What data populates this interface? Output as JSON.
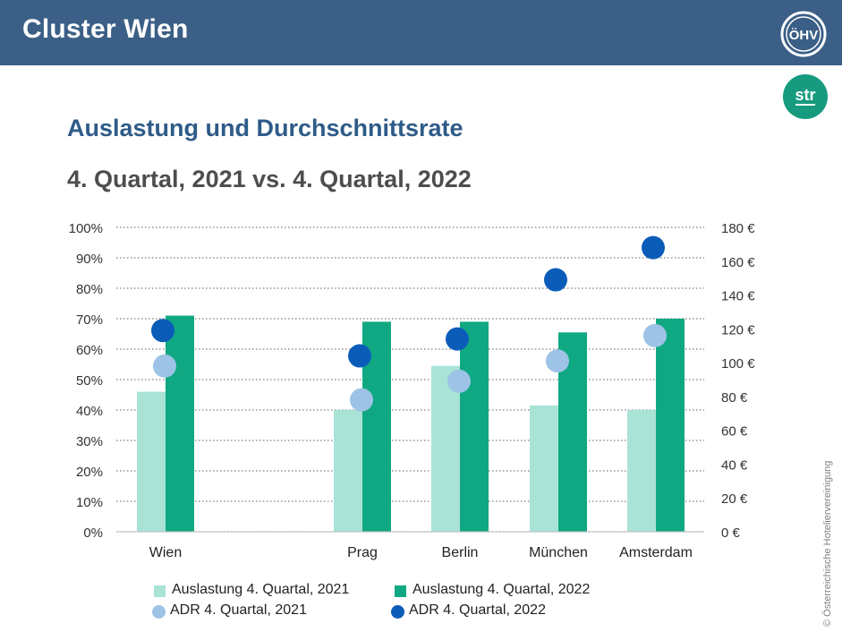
{
  "header": {
    "title": "Cluster Wien"
  },
  "logos": {
    "ohv": "ÖHV",
    "str": "str"
  },
  "credit": "© Österreichische Hoteliervereinigung",
  "colors": {
    "header_bg": "#3b5f86",
    "occ_2021": "#a8e3d6",
    "occ_2022": "#10a882",
    "adr_2021": "#9dc3e6",
    "adr_2022": "#0b5cb8",
    "str_logo": "#169b7f"
  },
  "chart_data": {
    "type": "bar",
    "title": "Auslastung und Durchschnittsrate",
    "subtitle": "4. Quartal, 2021 vs. 4. Quartal, 2022",
    "categories": [
      "Wien",
      "Prag",
      "Berlin",
      "München",
      "Amsterdam"
    ],
    "series": [
      {
        "name": "Auslastung 4. Quartal, 2021",
        "kind": "bar",
        "axis": "left",
        "values": [
          46,
          40,
          54.5,
          41.5,
          40
        ]
      },
      {
        "name": "Auslastung 4. Quartal, 2022",
        "kind": "bar",
        "axis": "left",
        "values": [
          71,
          69,
          69,
          65.5,
          70
        ]
      },
      {
        "name": "ADR 4. Quartal, 2021",
        "kind": "scatter",
        "axis": "right",
        "values": [
          98,
          78,
          89,
          101,
          116
        ]
      },
      {
        "name": "ADR 4. Quartal, 2022",
        "kind": "scatter",
        "axis": "right",
        "values": [
          119,
          104,
          114,
          149,
          168
        ]
      }
    ],
    "y_left": {
      "min": 0,
      "max": 100,
      "ticks": [
        "0%",
        "10%",
        "20%",
        "30%",
        "40%",
        "50%",
        "60%",
        "70%",
        "80%",
        "90%",
        "100%"
      ]
    },
    "y_right": {
      "min": 0,
      "max": 180,
      "ticks": [
        "0 €",
        "20 €",
        "40 €",
        "60 €",
        "80 €",
        "100 €",
        "120 €",
        "140 €",
        "160 €",
        "180 €"
      ]
    },
    "grid": "dotted horizontal",
    "legend_position": "bottom"
  }
}
